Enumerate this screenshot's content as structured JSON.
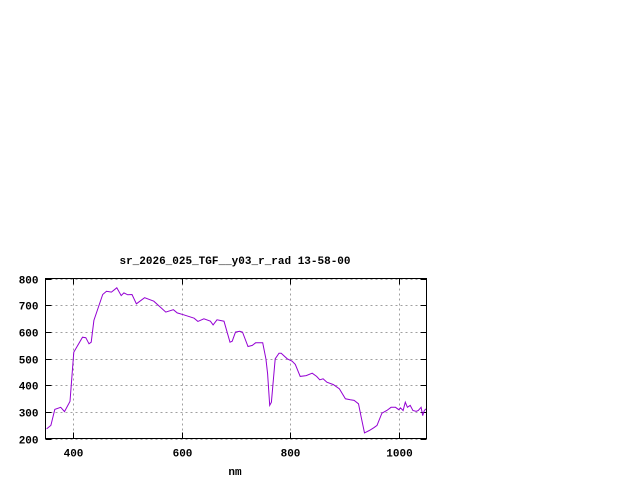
{
  "chart_data": {
    "type": "line",
    "title": "sr_2026_025_TGF__y03_r_rad 13-58-00",
    "xlabel": "nm",
    "ylabel": "",
    "xlim": [
      350,
      1050
    ],
    "ylim": [
      200,
      800
    ],
    "xticks": [
      400,
      600,
      800,
      1000
    ],
    "yticks": [
      200,
      300,
      400,
      500,
      600,
      700,
      800
    ],
    "grid": true,
    "line_color": "#9400d3",
    "series": [
      {
        "x": [
          352,
          360,
          367,
          378,
          385,
          395,
          402,
          418,
          424,
          430,
          434,
          439,
          455,
          462,
          471,
          481,
          489,
          494,
          501,
          509,
          517,
          532,
          549,
          571,
          585,
          592,
          604,
          623,
          630,
          641,
          653,
          658,
          665,
          678,
          689,
          693,
          699,
          707,
          712,
          722,
          730,
          736,
          749,
          755,
          758,
          762,
          765,
          772,
          779,
          783,
          794,
          803,
          809,
          818,
          829,
          840,
          848,
          854,
          860,
          867,
          879,
          890,
          901,
          910,
          917,
          925,
          930,
          936,
          945,
          953,
          959,
          968,
          977,
          985,
          993,
          999,
          1002,
          1007,
          1011,
          1015,
          1020,
          1025,
          1031,
          1035,
          1040,
          1043,
          1046,
          1049
        ],
        "y": [
          236,
          249,
          309,
          317,
          301,
          339,
          524,
          580,
          578,
          555,
          561,
          643,
          740,
          752,
          749,
          765,
          736,
          746,
          739,
          740,
          705,
          728,
          715,
          674,
          683,
          671,
          664,
          651,
          639,
          649,
          640,
          626,
          645,
          640,
          561,
          565,
          599,
          602,
          599,
          545,
          549,
          559,
          559,
          499,
          443,
          324,
          336,
          499,
          520,
          520,
          499,
          490,
          478,
          433,
          436,
          445,
          433,
          420,
          424,
          411,
          402,
          386,
          349,
          345,
          343,
          330,
          280,
          221,
          230,
          240,
          249,
          295,
          305,
          317,
          317,
          308,
          315,
          305,
          336,
          317,
          324,
          305,
          302,
          305,
          317,
          286,
          305,
          311
        ]
      }
    ]
  }
}
